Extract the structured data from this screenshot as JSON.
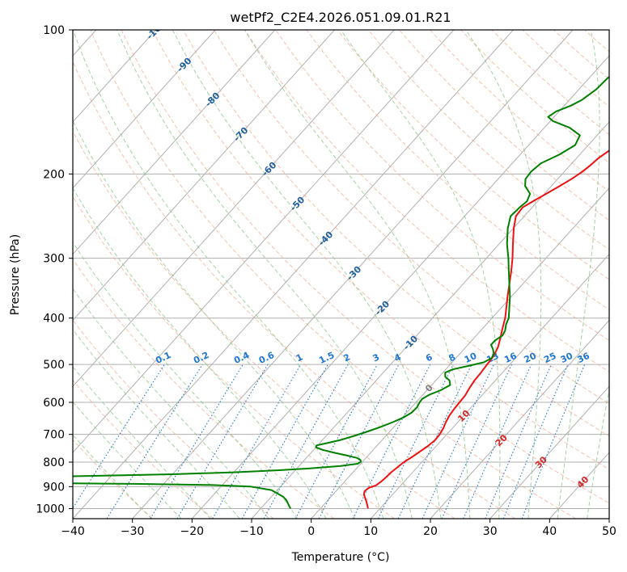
{
  "chart_data": {
    "type": "line",
    "subtype": "skew-t log-p diagram",
    "title": "wetPf2_C2E4.2026.051.09.01.R21",
    "xlabel": "Temperature (°C)",
    "ylabel": "Pressure (hPa)",
    "xlim": [
      -40,
      50
    ],
    "ylim": [
      1050,
      100
    ],
    "x_ticks": [
      -40,
      -30,
      -20,
      -10,
      0,
      10,
      20,
      30,
      40,
      50
    ],
    "x_tick_labels": [
      "−40",
      "−30",
      "−20",
      "−10",
      "0",
      "10",
      "20",
      "30",
      "40",
      "50"
    ],
    "y_ticks": [
      100,
      200,
      300,
      400,
      500,
      600,
      700,
      800,
      900,
      1000
    ],
    "y_tick_labels": [
      "100",
      "200",
      "300",
      "400",
      "500",
      "600",
      "700",
      "800",
      "900",
      "1000"
    ],
    "grid": true,
    "series": [
      {
        "name": "Temperature",
        "color": "#ee1111",
        "points": [
          [
            1000,
            8.0
          ],
          [
            970,
            6.8
          ],
          [
            950,
            5.9
          ],
          [
            935,
            5.2
          ],
          [
            920,
            4.8
          ],
          [
            905,
            5.0
          ],
          [
            895,
            5.8
          ],
          [
            880,
            6.1
          ],
          [
            860,
            6.3
          ],
          [
            840,
            6.4
          ],
          [
            820,
            6.7
          ],
          [
            800,
            7.0
          ],
          [
            780,
            7.6
          ],
          [
            760,
            8.1
          ],
          [
            740,
            8.6
          ],
          [
            720,
            8.9
          ],
          [
            700,
            8.8
          ],
          [
            680,
            8.5
          ],
          [
            660,
            8.0
          ],
          [
            640,
            7.6
          ],
          [
            620,
            7.4
          ],
          [
            600,
            7.3
          ],
          [
            580,
            7.2
          ],
          [
            560,
            6.8
          ],
          [
            540,
            6.5
          ],
          [
            520,
            6.4
          ],
          [
            500,
            6.2
          ],
          [
            480,
            6.0
          ],
          [
            460,
            5.4
          ],
          [
            440,
            4.4
          ],
          [
            420,
            3.3
          ],
          [
            400,
            2.2
          ],
          [
            380,
            0.8
          ],
          [
            360,
            -0.7
          ],
          [
            340,
            -2.2
          ],
          [
            320,
            -3.8
          ],
          [
            300,
            -5.6
          ],
          [
            280,
            -7.7
          ],
          [
            260,
            -9.9
          ],
          [
            245,
            -11.4
          ],
          [
            235,
            -11.6
          ],
          [
            228,
            -10.8
          ],
          [
            220,
            -9.7
          ],
          [
            212,
            -8.6
          ],
          [
            205,
            -7.7
          ],
          [
            198,
            -7.0
          ],
          [
            192,
            -6.6
          ],
          [
            185,
            -6.3
          ],
          [
            178,
            -5.6
          ],
          [
            170,
            -4.1
          ],
          [
            163,
            -2.3
          ],
          [
            157,
            -0.4
          ],
          [
            150,
            1.6
          ],
          [
            142,
            3.0
          ],
          [
            135,
            3.9
          ],
          [
            128,
            4.6
          ],
          [
            122,
            5.1
          ],
          [
            115,
            5.6
          ],
          [
            110,
            6.3
          ],
          [
            105,
            6.8
          ],
          [
            100,
            7.4
          ]
        ]
      },
      {
        "name": "Dewpoint",
        "color": "#008000",
        "points": [
          [
            1000,
            -5.0
          ],
          [
            980,
            -6.0
          ],
          [
            960,
            -7.0
          ],
          [
            945,
            -8.0
          ],
          [
            930,
            -9.5
          ],
          [
            915,
            -11.0
          ],
          [
            900,
            -15.0
          ],
          [
            893,
            -22.0
          ],
          [
            888,
            -35.0
          ],
          [
            885,
            -50.0
          ],
          [
            858,
            -50.0
          ],
          [
            852,
            -38.0
          ],
          [
            848,
            -30.0
          ],
          [
            840,
            -20.0
          ],
          [
            832,
            -13.0
          ],
          [
            825,
            -8.0
          ],
          [
            815,
            -3.0
          ],
          [
            806,
            -0.5
          ],
          [
            798,
            -0.3
          ],
          [
            792,
            -0.6
          ],
          [
            784,
            -1.5
          ],
          [
            775,
            -3.5
          ],
          [
            765,
            -6.0
          ],
          [
            754,
            -8.5
          ],
          [
            745,
            -10.0
          ],
          [
            738,
            -10.2
          ],
          [
            730,
            -8.8
          ],
          [
            720,
            -7.1
          ],
          [
            705,
            -5.3
          ],
          [
            690,
            -3.7
          ],
          [
            675,
            -2.2
          ],
          [
            660,
            -0.9
          ],
          [
            645,
            0.2
          ],
          [
            630,
            0.8
          ],
          [
            615,
            0.9
          ],
          [
            600,
            0.6
          ],
          [
            590,
            0.5
          ],
          [
            578,
            1.1
          ],
          [
            566,
            2.3
          ],
          [
            552,
            3.1
          ],
          [
            540,
            2.3
          ],
          [
            530,
            1.0
          ],
          [
            520,
            0.4
          ],
          [
            512,
            1.2
          ],
          [
            503,
            3.4
          ],
          [
            495,
            5.3
          ],
          [
            485,
            6.0
          ],
          [
            475,
            5.7
          ],
          [
            465,
            4.9
          ],
          [
            455,
            3.9
          ],
          [
            445,
            3.9
          ],
          [
            435,
            4.4
          ],
          [
            425,
            4.1
          ],
          [
            412,
            3.3
          ],
          [
            400,
            2.8
          ],
          [
            380,
            1.3
          ],
          [
            360,
            -0.3
          ],
          [
            340,
            -2.2
          ],
          [
            320,
            -4.2
          ],
          [
            300,
            -6.3
          ],
          [
            280,
            -8.7
          ],
          [
            260,
            -10.9
          ],
          [
            245,
            -12.3
          ],
          [
            235,
            -12.1
          ],
          [
            228,
            -11.8
          ],
          [
            220,
            -12.4
          ],
          [
            212,
            -14.4
          ],
          [
            205,
            -15.4
          ],
          [
            198,
            -15.6
          ],
          [
            190,
            -15.2
          ],
          [
            182,
            -13.4
          ],
          [
            174,
            -12.2
          ],
          [
            166,
            -12.9
          ],
          [
            160,
            -15.8
          ],
          [
            155,
            -19.6
          ],
          [
            152,
            -21.0
          ],
          [
            148,
            -20.5
          ],
          [
            144,
            -18.9
          ],
          [
            140,
            -17.9
          ],
          [
            133,
            -17.1
          ],
          [
            126,
            -16.9
          ],
          [
            119,
            -15.8
          ],
          [
            112,
            -15.1
          ],
          [
            106,
            -14.5
          ],
          [
            100,
            -14.5
          ]
        ]
      }
    ],
    "reference_lines": {
      "isotherms_every_c": 10,
      "dry_adiabats_color": "#f4a58a",
      "moist_adiabats_color": "#7fbf7f",
      "isohumes_color": "#1f77d4",
      "isohume_labels_g_per_kg": [
        "0.1",
        "0.2",
        "0.4",
        "0.6",
        "1",
        "1.5",
        "2",
        "3",
        "4",
        "6",
        "8",
        "10",
        "13",
        "16",
        "20",
        "25",
        "30",
        "36"
      ],
      "isohume_label_values": [
        0.1,
        0.2,
        0.4,
        0.6,
        1,
        1.5,
        2,
        3,
        4,
        6,
        8,
        10,
        13,
        16,
        20,
        25,
        30,
        36
      ],
      "dry_adiabat_labels": [
        "-100",
        "-90",
        "-80",
        "-70",
        "-60",
        "-50",
        "-40",
        "-30",
        "-20",
        "-10"
      ],
      "dry_adiabat_label_values": [
        -100,
        -90,
        -80,
        -70,
        -60,
        -50,
        -40,
        -30,
        -20,
        -10
      ],
      "dry_adiabat_label_color": "#1f5f9f",
      "moist_adiabat_labels": [
        "0",
        "10",
        "20",
        "30",
        "40"
      ],
      "moist_adiabat_label_values": [
        0,
        10,
        20,
        30,
        40
      ],
      "moist_adiabat_label_colors": [
        "#808080",
        "#d62728",
        "#d62728",
        "#d62728",
        "#d62728"
      ]
    }
  }
}
